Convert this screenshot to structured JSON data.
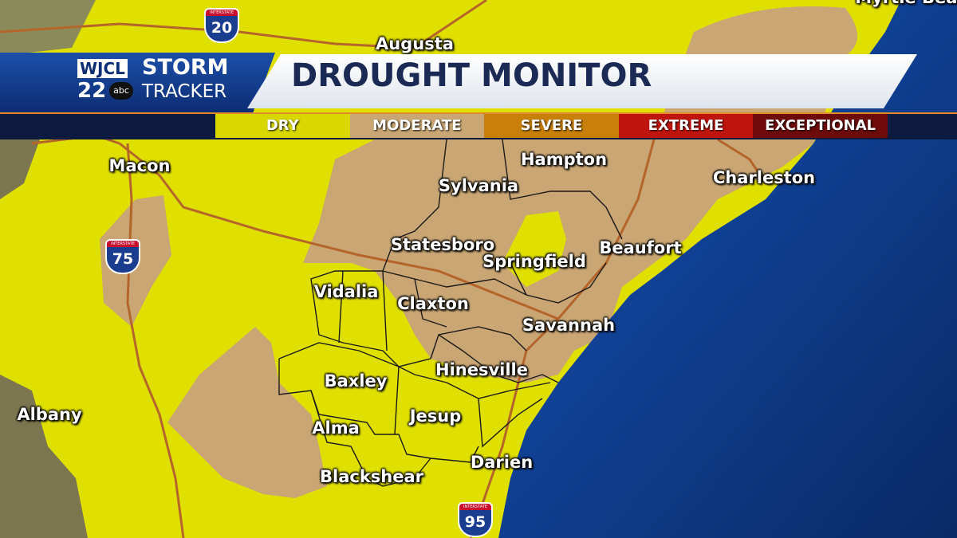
{
  "header": {
    "station_logo": {
      "call_letters": "WJCL",
      "channel": "22",
      "network": "abc"
    },
    "brand_line1": "STORM",
    "brand_line2": "TRACKER",
    "title": "DROUGHT MONITOR"
  },
  "legend": [
    {
      "label": "DRY",
      "color": "#d8d800"
    },
    {
      "label": "MODERATE",
      "color": "#c9a673"
    },
    {
      "label": "SEVERE",
      "color": "#c8800a"
    },
    {
      "label": "EXTREME",
      "color": "#c0140e"
    },
    {
      "label": "EXCEPTIONAL",
      "color": "#6e0a0a"
    }
  ],
  "map": {
    "colors": {
      "dry": "#dfdf00",
      "moderate": "#c9a673",
      "ocean": "#0c3580",
      "roads": "#b5652a",
      "counties": "#1a1a1a"
    },
    "cities": [
      "Augusta",
      "Myrtle Beach",
      "Macon",
      "Albany",
      "Hampton",
      "Sylvania",
      "Charleston",
      "Statesboro",
      "Springfield",
      "Beaufort",
      "Vidalia",
      "Claxton",
      "Savannah",
      "Hinesville",
      "Baxley",
      "Jesup",
      "Alma",
      "Darien",
      "Blackshear"
    ],
    "shields": [
      {
        "label": "INTERSTATE",
        "number": "20"
      },
      {
        "label": "INTERSTATE",
        "number": "75"
      },
      {
        "label": "INTERSTATE",
        "number": "95"
      }
    ]
  }
}
